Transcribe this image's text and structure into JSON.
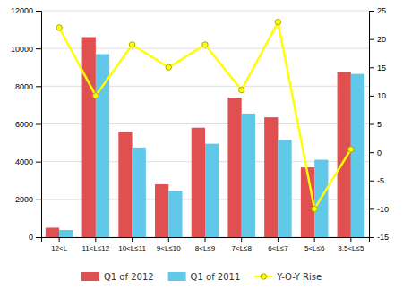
{
  "chart_data": {
    "type": "bar",
    "categories": [
      "12<L",
      "11<L≤12",
      "10<L≤11",
      "9<L≤10",
      "8<L≤9",
      "7<L≤8",
      "6<L≤7",
      "5<L≤6",
      "3.5<L≤5"
    ],
    "series": [
      {
        "name": "Q1 of 2012",
        "color": "#e05050",
        "values": [
          500,
          10600,
          5600,
          2800,
          5800,
          7400,
          6350,
          3700,
          8750
        ]
      },
      {
        "name": "Q1 of 2011",
        "color": "#60c8e8",
        "values": [
          380,
          9700,
          4750,
          2450,
          4950,
          6550,
          5150,
          4100,
          8650
        ]
      },
      {
        "name": "Y-O-Y Rise",
        "color": "#ffff00",
        "values": [
          22,
          10,
          19,
          15,
          19,
          11,
          23,
          -10,
          0.5
        ],
        "type": "line",
        "axis": "y2",
        "marker": "circle"
      }
    ],
    "ylim": [
      0,
      12000
    ],
    "yticks": [
      0,
      2000,
      4000,
      6000,
      8000,
      10000,
      12000
    ],
    "y2lim": [
      -15,
      25
    ],
    "y2ticks": [
      -15,
      -10,
      -5,
      0,
      5,
      10,
      15,
      20,
      25
    ],
    "grid": true,
    "legend": "bottom"
  }
}
